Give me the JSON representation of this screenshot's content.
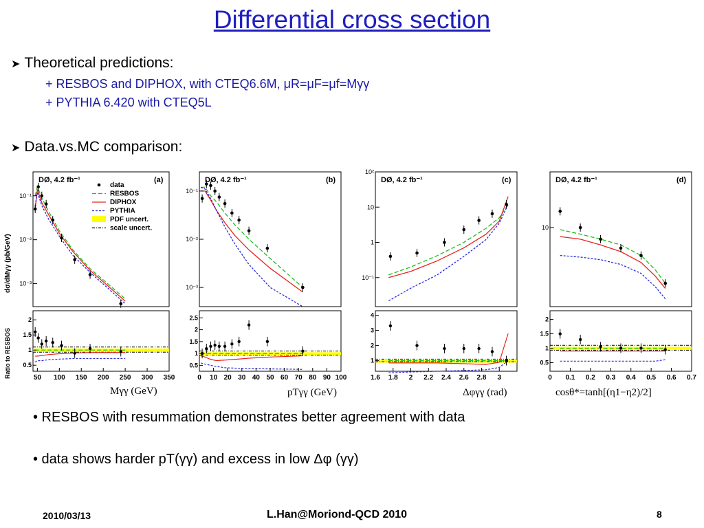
{
  "title": "Differential cross section",
  "bullets": {
    "theory": "Theoretical predictions:",
    "line1": "+ RESBOS and DIPHOX, with CTEQ6.6M, μR=μF=μf=Mγγ",
    "line2": "+ PYTHIA 6.420 with CTEQ5L",
    "comparison": "Data.vs.MC comparison:"
  },
  "conclusions": {
    "c1": "• RESBOS with resummation demonstrates better agreement with data",
    "c2": "• data shows harder pT(γγ) and excess in low Δφ (γγ)"
  },
  "footer": {
    "date": "2010/03/13",
    "author": "L.Han@Moriond-QCD 2010",
    "page": "8"
  },
  "legend": {
    "data": "data",
    "resbos": "RESBOS",
    "diphox": "DIPHOX",
    "pythia": "PYTHIA",
    "pdf": "PDF uncert.",
    "scale": "scale uncert."
  },
  "colors": {
    "title": "#1f1fbf",
    "resbos": "#19c019",
    "diphox": "#e8231e",
    "pythia": "#2a2ad8",
    "pdf": "#ffff00"
  },
  "axis_titles": {
    "y_top": "dσ/dMγγ (pb/GeV)",
    "y_ratio": "Ratio to RESBOS"
  },
  "chart_data": [
    {
      "type": "line",
      "panel": "(a)",
      "label": "DØ, 4.2 fb⁻¹",
      "xlabel": "Mγγ (GeV)",
      "log_y": true,
      "xlim": [
        40,
        350
      ],
      "ylim": [
        0.0003,
        0.35
      ],
      "ratio_ylim": [
        0.3,
        2.3
      ],
      "x_ticks": [
        "50",
        "100",
        "150",
        "200",
        "250",
        "300",
        "350"
      ],
      "y_ticks": [
        "10⁻¹",
        "10⁻²",
        "10⁻³"
      ],
      "ratio_ticks": [
        "0.5",
        "1",
        "1.5",
        "2"
      ],
      "data": {
        "x": [
          45,
          52,
          60,
          70,
          85,
          105,
          135,
          170,
          240
        ],
        "y": [
          0.05,
          0.16,
          0.1,
          0.065,
          0.028,
          0.011,
          0.0035,
          0.0016,
          0.00035
        ],
        "ratio": [
          1.6,
          1.4,
          1.2,
          1.3,
          1.25,
          1.15,
          0.9,
          1.05,
          0.95
        ]
      },
      "series": [
        {
          "name": "RESBOS",
          "x": [
            45,
            50,
            60,
            75,
            100,
            130,
            170,
            210,
            250
          ],
          "y": [
            0.1,
            0.16,
            0.09,
            0.045,
            0.016,
            0.006,
            0.0022,
            0.001,
            0.00045
          ],
          "ratio": [
            1,
            1,
            1,
            1,
            1,
            1,
            1,
            1,
            1
          ]
        },
        {
          "name": "DIPHOX",
          "x": [
            45,
            50,
            60,
            75,
            100,
            130,
            170,
            210,
            250
          ],
          "y": [
            0.05,
            0.14,
            0.07,
            0.038,
            0.014,
            0.0055,
            0.002,
            0.0009,
            0.0004
          ],
          "ratio": [
            0.8,
            0.8,
            0.82,
            0.85,
            0.88,
            0.9,
            0.92,
            0.92,
            0.92
          ]
        },
        {
          "name": "PYTHIA",
          "x": [
            45,
            50,
            60,
            75,
            100,
            130,
            170,
            210,
            250
          ],
          "y": [
            0.06,
            0.12,
            0.06,
            0.03,
            0.012,
            0.0045,
            0.0018,
            0.0008,
            0.00035
          ],
          "ratio": [
            0.6,
            0.65,
            0.65,
            0.68,
            0.7,
            0.72,
            0.72,
            0.72,
            0.72
          ]
        }
      ]
    },
    {
      "type": "line",
      "panel": "(b)",
      "label": "DØ, 4.2 fb⁻¹",
      "xlabel": "pTγγ (GeV)",
      "log_y": true,
      "xlim": [
        0,
        100
      ],
      "ylim": [
        0.0004,
        0.25
      ],
      "ratio_ylim": [
        0.25,
        2.8
      ],
      "x_ticks": [
        "0",
        "10",
        "20",
        "30",
        "40",
        "50",
        "60",
        "70",
        "80",
        "90",
        "100"
      ],
      "y_ticks": [
        "10⁻¹",
        "10⁻²",
        "10⁻³"
      ],
      "ratio_ticks": [
        "0.5",
        "1",
        "1.5",
        "2",
        "2.5"
      ],
      "data": {
        "x": [
          2,
          5,
          8,
          11,
          14,
          18,
          23,
          28,
          35,
          48,
          73
        ],
        "y": [
          0.07,
          0.14,
          0.13,
          0.1,
          0.075,
          0.055,
          0.035,
          0.025,
          0.015,
          0.0065,
          0.001
        ],
        "ratio": [
          1.0,
          1.2,
          1.3,
          1.35,
          1.3,
          1.3,
          1.4,
          1.5,
          2.2,
          1.5,
          1.1
        ]
      },
      "series": [
        {
          "name": "RESBOS",
          "x": [
            1,
            4,
            8,
            12,
            18,
            25,
            35,
            50,
            73
          ],
          "y": [
            0.12,
            0.12,
            0.08,
            0.06,
            0.035,
            0.02,
            0.01,
            0.004,
            0.001
          ],
          "ratio": [
            1,
            1,
            1,
            1,
            1,
            1,
            1,
            1,
            1
          ]
        },
        {
          "name": "DIPHOX",
          "x": [
            1,
            4,
            8,
            12,
            18,
            25,
            35,
            50,
            73
          ],
          "y": [
            0.1,
            0.1,
            0.065,
            0.04,
            0.022,
            0.012,
            0.006,
            0.0025,
            0.0008
          ],
          "ratio": [
            0.9,
            0.85,
            0.75,
            0.7,
            0.72,
            0.75,
            0.8,
            0.85,
            0.9
          ]
        },
        {
          "name": "PYTHIA",
          "x": [
            1,
            4,
            8,
            12,
            18,
            25,
            35,
            50,
            73
          ],
          "y": [
            0.12,
            0.11,
            0.07,
            0.04,
            0.018,
            0.008,
            0.003,
            0.001,
            0.0004
          ],
          "ratio": [
            0.6,
            0.55,
            0.5,
            0.45,
            0.4,
            0.38,
            0.36,
            0.35,
            0.33
          ]
        }
      ]
    },
    {
      "type": "line",
      "panel": "(c)",
      "label": "DØ, 4.2 fb⁻¹",
      "xlabel": "Δφγγ (rad)",
      "log_y": true,
      "xlim": [
        1.6,
        3.2
      ],
      "ylim": [
        0.015,
        100
      ],
      "ratio_ylim": [
        0.3,
        4.3
      ],
      "x_ticks": [
        "1.6",
        "1.8",
        "2",
        "2.2",
        "2.4",
        "2.6",
        "2.8",
        "3"
      ],
      "y_ticks": [
        "10²",
        "10",
        "1",
        "10⁻¹"
      ],
      "ratio_ticks": [
        "1",
        "2",
        "3",
        "4"
      ],
      "data": {
        "x": [
          1.77,
          2.07,
          2.38,
          2.6,
          2.77,
          2.92,
          3.08
        ],
        "y": [
          0.4,
          0.5,
          1.0,
          2.3,
          4.2,
          6.5,
          12
        ],
        "ratio": [
          3.3,
          2.0,
          1.8,
          1.8,
          1.8,
          1.6,
          1.0
        ]
      },
      "series": [
        {
          "name": "RESBOS",
          "x": [
            1.75,
            2.0,
            2.3,
            2.6,
            2.85,
            3.0,
            3.1
          ],
          "y": [
            0.12,
            0.2,
            0.42,
            1.0,
            2.5,
            5,
            12
          ],
          "ratio": [
            1,
            1,
            1,
            1,
            1,
            1,
            1
          ]
        },
        {
          "name": "DIPHOX",
          "x": [
            1.75,
            2.0,
            2.3,
            2.6,
            2.85,
            3.0,
            3.1
          ],
          "y": [
            0.1,
            0.15,
            0.3,
            0.7,
            1.7,
            4,
            20
          ],
          "ratio": [
            0.85,
            0.85,
            0.85,
            0.8,
            0.75,
            0.9,
            2.8
          ]
        },
        {
          "name": "PYTHIA",
          "x": [
            1.75,
            2.0,
            2.3,
            2.6,
            2.85,
            3.0,
            3.1
          ],
          "y": [
            0.022,
            0.05,
            0.12,
            0.4,
            1.2,
            3.5,
            12
          ],
          "ratio": [
            0.2,
            0.25,
            0.3,
            0.35,
            0.4,
            0.55,
            1.0
          ]
        }
      ]
    },
    {
      "type": "line",
      "panel": "(d)",
      "label": "DØ, 4.2 fb⁻¹",
      "xlabel": "cosθ*=tanh[(η1−η2)/2]",
      "log_y": true,
      "xlim": [
        0,
        0.7
      ],
      "ylim": [
        1.4,
        40
      ],
      "ratio_ylim": [
        0.2,
        2.3
      ],
      "x_ticks": [
        "0",
        "0.1",
        "0.2",
        "0.3",
        "0.4",
        "0.5",
        "0.6",
        "0.7"
      ],
      "y_ticks": [
        "10"
      ],
      "ratio_ticks": [
        "0.5",
        "1",
        "1.5",
        "2"
      ],
      "data": {
        "x": [
          0.05,
          0.15,
          0.25,
          0.35,
          0.45,
          0.57
        ],
        "y": [
          15,
          10,
          7.5,
          6,
          5,
          2.5
        ],
        "ratio": [
          1.5,
          1.3,
          1.05,
          1.0,
          1.0,
          0.95
        ]
      },
      "series": [
        {
          "name": "RESBOS",
          "x": [
            0.05,
            0.15,
            0.25,
            0.35,
            0.45,
            0.52,
            0.57
          ],
          "y": [
            9.5,
            8.5,
            7.5,
            6.5,
            5,
            3.5,
            2.5
          ],
          "ratio": [
            1,
            1,
            1,
            1,
            1,
            1,
            1
          ]
        },
        {
          "name": "DIPHOX",
          "x": [
            0.05,
            0.15,
            0.25,
            0.35,
            0.45,
            0.52,
            0.57
          ],
          "y": [
            8,
            7.5,
            6.5,
            5.5,
            4.2,
            3.0,
            2.2
          ],
          "ratio": [
            0.9,
            0.9,
            0.9,
            0.9,
            0.9,
            0.9,
            0.9
          ]
        },
        {
          "name": "PYTHIA",
          "x": [
            0.05,
            0.15,
            0.25,
            0.35,
            0.45,
            0.52,
            0.57
          ],
          "y": [
            5,
            4.8,
            4.5,
            4,
            3.2,
            2.3,
            1.7
          ],
          "ratio": [
            0.55,
            0.55,
            0.55,
            0.55,
            0.55,
            0.55,
            0.6
          ]
        }
      ]
    }
  ]
}
